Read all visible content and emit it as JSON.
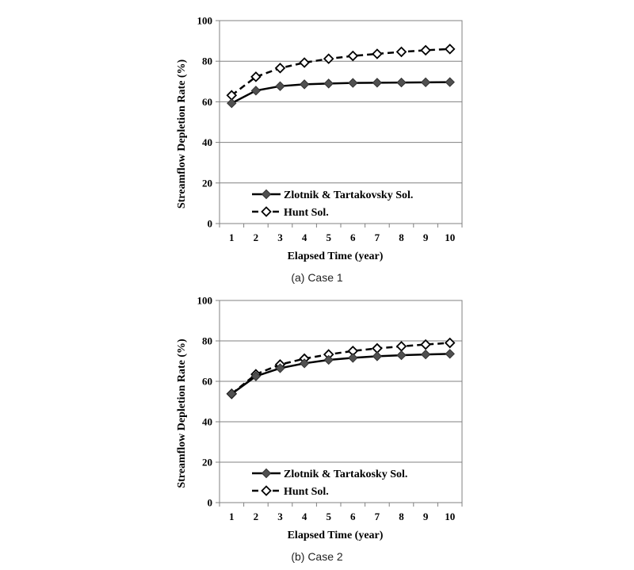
{
  "captions": [
    "(a) Case 1",
    "(b) Case 2"
  ],
  "chart_data": [
    {
      "type": "line",
      "x": [
        1,
        2,
        3,
        4,
        5,
        6,
        7,
        8,
        9,
        10
      ],
      "categories": [
        "1",
        "2",
        "3",
        "4",
        "5",
        "6",
        "7",
        "8",
        "9",
        "10"
      ],
      "ylabel": "Streamflow Depletion Rate (%)",
      "xlabel": "Elapsed Time (year)",
      "ylim": [
        0,
        100
      ],
      "yticks": [
        0,
        20,
        40,
        60,
        80,
        100
      ],
      "grid": "horizontal",
      "legend_position": "bottom-left",
      "series": [
        {
          "name": "Zlotnik & Tartakovsky Sol.",
          "style": "solid",
          "marker": "filled-diamond",
          "values": [
            59.3,
            65.5,
            67.7,
            68.6,
            69.0,
            69.3,
            69.4,
            69.5,
            69.6,
            69.7
          ]
        },
        {
          "name": "Hunt Sol.",
          "style": "dashed",
          "marker": "open-diamond",
          "values": [
            63.2,
            72.3,
            76.6,
            79.3,
            81.2,
            82.6,
            83.6,
            84.6,
            85.4,
            86.0
          ]
        }
      ]
    },
    {
      "type": "line",
      "x": [
        1,
        2,
        3,
        4,
        5,
        6,
        7,
        8,
        9,
        10
      ],
      "categories": [
        "1",
        "2",
        "3",
        "4",
        "5",
        "6",
        "7",
        "8",
        "9",
        "10"
      ],
      "ylabel": "Streamflow Depletion Rate (%)",
      "xlabel": "Elapsed Time (year)",
      "ylim": [
        0,
        100
      ],
      "yticks": [
        0,
        20,
        40,
        60,
        80,
        100
      ],
      "grid": "horizontal",
      "legend_position": "bottom-left",
      "series": [
        {
          "name": "Zlotnik & Tartakosky Sol.",
          "style": "solid",
          "marker": "filled-diamond",
          "values": [
            53.8,
            62.5,
            66.5,
            68.9,
            70.6,
            71.6,
            72.4,
            72.9,
            73.3,
            73.6
          ]
        },
        {
          "name": "Hunt Sol.",
          "style": "dashed",
          "marker": "open-diamond",
          "values": [
            53.8,
            63.5,
            68.3,
            71.2,
            73.3,
            75.0,
            76.3,
            77.3,
            78.2,
            79.0
          ]
        }
      ]
    }
  ]
}
